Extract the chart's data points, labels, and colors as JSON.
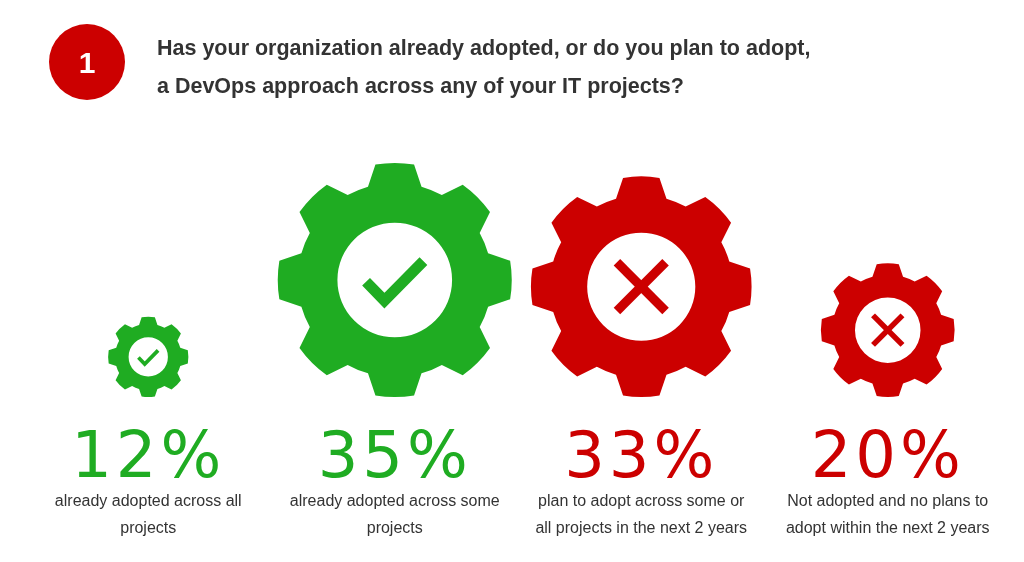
{
  "chart_data": {
    "type": "other",
    "title": "Has your organization already adopted, or do you plan to adopt, a DevOps approach across any of your IT projects?",
    "annotations": [
      "1"
    ],
    "categories": [
      "already adopted across all projects",
      "already adopted across some projects",
      "plan to adopt across some or all projects in the next 2 years",
      "Not adopted and no plans to adopt within the next 2 years"
    ],
    "series": [
      {
        "color": "#1fac22",
        "values": [
          12,
          35,
          null,
          null
        ],
        "value_labels": [
          "12%",
          "35%",
          null,
          null
        ]
      },
      {
        "color": "#cc0000",
        "values": [
          null,
          null,
          33,
          20
        ],
        "value_labels": [
          null,
          null,
          "33%",
          "20%"
        ],
        "marker": "cross"
      }
    ]
  }
}
